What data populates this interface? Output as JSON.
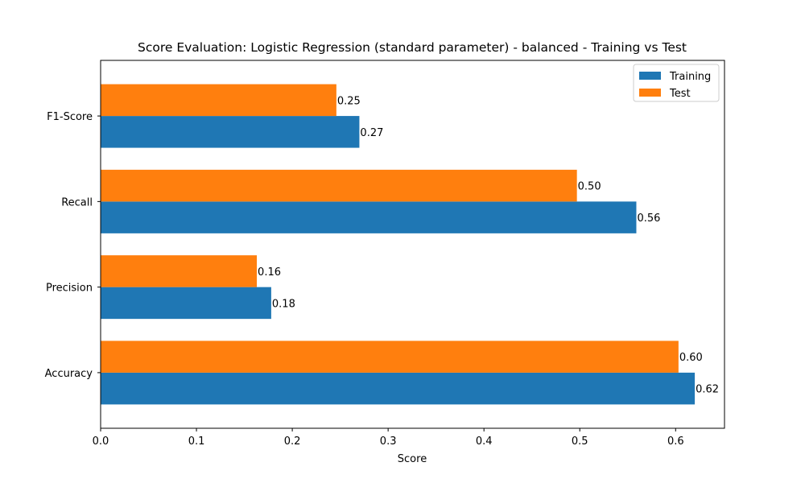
{
  "chart_data": {
    "type": "bar",
    "orientation": "horizontal",
    "title": "Score Evaluation: Logistic Regression (standard parameter) - balanced - Training vs Test",
    "xlabel": "Score",
    "ylabel": "",
    "categories": [
      "Accuracy",
      "Precision",
      "Recall",
      "F1-Score"
    ],
    "series": [
      {
        "name": "Training",
        "color": "#1f77b4",
        "values": [
          0.62,
          0.178,
          0.559,
          0.27
        ],
        "labels": [
          "0.62",
          "0.18",
          "0.56",
          "0.27"
        ]
      },
      {
        "name": "Test",
        "color": "#ff7f0e",
        "values": [
          0.603,
          0.163,
          0.497,
          0.246
        ],
        "labels": [
          "0.60",
          "0.16",
          "0.50",
          "0.25"
        ]
      }
    ],
    "xlim": [
      0,
      0.651
    ],
    "xticks": [
      "0.0",
      "0.1",
      "0.2",
      "0.3",
      "0.4",
      "0.5",
      "0.6"
    ],
    "grid": false,
    "legend_position": "top-right"
  }
}
